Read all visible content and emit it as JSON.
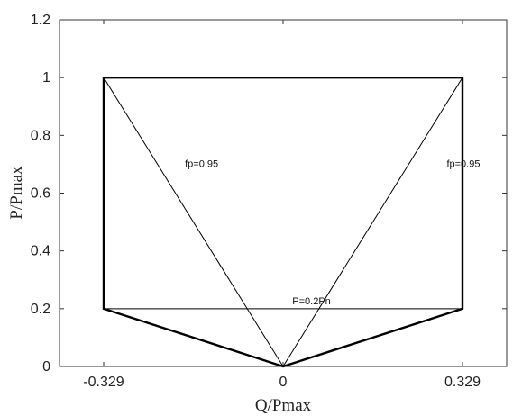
{
  "chart_data": {
    "type": "line",
    "xlabel": "Q/Pmax",
    "ylabel": "P/Pmax",
    "xlim": [
      -0.41,
      0.41
    ],
    "ylim": [
      0,
      1.2
    ],
    "xticks": [
      -0.329,
      0,
      0.329
    ],
    "xtick_labels": [
      "-0.329",
      "0",
      "0.329"
    ],
    "yticks": [
      0,
      0.2,
      0.4,
      0.6,
      0.8,
      1.0,
      1.2
    ],
    "ytick_labels": [
      "0",
      "0.2",
      "0.4",
      "0.6",
      "0.8",
      "1",
      "1.2"
    ],
    "grid": false,
    "series": [
      {
        "role": "capability-boundary",
        "x": [
          -0.329,
          0.329,
          0.329,
          0,
          -0.329,
          -0.329
        ],
        "y": [
          1,
          1,
          0.2,
          0,
          0.2,
          1
        ],
        "color": "#000000",
        "bold": true
      },
      {
        "role": "power-factor-line-left",
        "x": [
          0,
          -0.329
        ],
        "y": [
          0,
          1
        ],
        "color": "#000000"
      },
      {
        "role": "power-factor-line-right",
        "x": [
          0,
          0.329
        ],
        "y": [
          0,
          1
        ],
        "color": "#000000"
      },
      {
        "role": "minimum-power-line",
        "x": [
          -0.329,
          0.329
        ],
        "y": [
          0.2,
          0.2
        ],
        "color": "#000000"
      }
    ],
    "annotations": [
      {
        "text": "fp=0.95",
        "x": -0.18,
        "y": 0.69
      },
      {
        "text": "fp=0.95",
        "x": 0.3,
        "y": 0.69
      },
      {
        "text": "P=0.2Pn",
        "x": 0.017,
        "y": 0.215
      }
    ]
  }
}
